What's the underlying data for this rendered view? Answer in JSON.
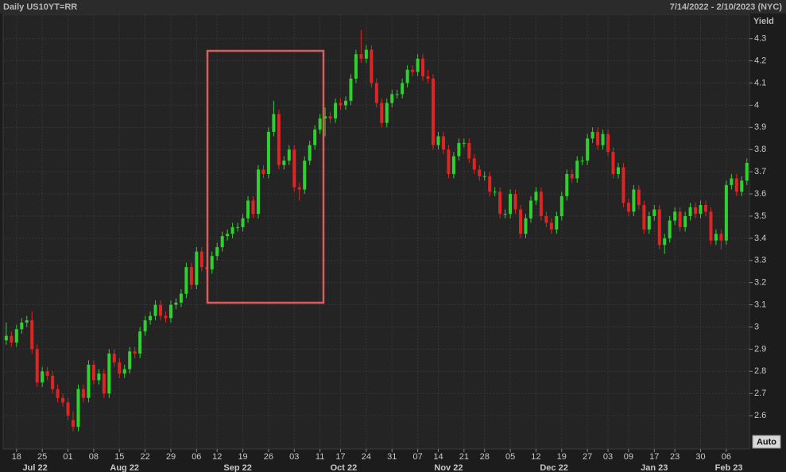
{
  "header": {
    "title": "Daily US10YT=RR",
    "range": "7/14/2022 - 2/10/2023 (NYC)"
  },
  "chart_data": {
    "type": "candlestick",
    "y_axis_label": "Yield",
    "button": "Auto",
    "up_color": "#2fd12f",
    "down_color": "#e02424",
    "grid": true,
    "xlim": [
      -0.6,
      144.5
    ],
    "ylim": [
      2.45,
      4.41
    ],
    "yticks": [
      2.6,
      2.7,
      2.8,
      2.9,
      3,
      3.1,
      3.2,
      3.3,
      3.4,
      3.5,
      3.6,
      3.7,
      3.8,
      3.9,
      4,
      4.1,
      4.2,
      4.3
    ],
    "xticks": [
      {
        "value": 2,
        "label": "18"
      },
      {
        "value": 7,
        "label": "25"
      },
      {
        "value": 12,
        "label": "01"
      },
      {
        "value": 17,
        "label": "08"
      },
      {
        "value": 22,
        "label": "15"
      },
      {
        "value": 27,
        "label": "22"
      },
      {
        "value": 32,
        "label": "29"
      },
      {
        "value": 37,
        "label": "06"
      },
      {
        "value": 41,
        "label": "12"
      },
      {
        "value": 46,
        "label": "19"
      },
      {
        "value": 51,
        "label": "26"
      },
      {
        "value": 56,
        "label": "03"
      },
      {
        "value": 61,
        "label": "11"
      },
      {
        "value": 65,
        "label": "17"
      },
      {
        "value": 70,
        "label": "24"
      },
      {
        "value": 75,
        "label": "31"
      },
      {
        "value": 80,
        "label": "07"
      },
      {
        "value": 84,
        "label": "14"
      },
      {
        "value": 89,
        "label": "21"
      },
      {
        "value": 93,
        "label": "28"
      },
      {
        "value": 98,
        "label": "05"
      },
      {
        "value": 103,
        "label": "12"
      },
      {
        "value": 108,
        "label": "19"
      },
      {
        "value": 113,
        "label": "27"
      },
      {
        "value": 117,
        "label": "03"
      },
      {
        "value": 121,
        "label": "09"
      },
      {
        "value": 126,
        "label": "17"
      },
      {
        "value": 130,
        "label": "23"
      },
      {
        "value": 135,
        "label": "30"
      },
      {
        "value": 140,
        "label": "06"
      }
    ],
    "month_ticks": [
      {
        "value": 5.6,
        "label": "Jul 22"
      },
      {
        "value": 23,
        "label": "Aug 22"
      },
      {
        "value": 45,
        "label": "Sep 22"
      },
      {
        "value": 65.6,
        "label": "Oct 22"
      },
      {
        "value": 86,
        "label": "Nov 22"
      },
      {
        "value": 106.5,
        "label": "Dec 22"
      },
      {
        "value": 126,
        "label": "Jan 23"
      },
      {
        "value": 140.5,
        "label": "Feb 23"
      }
    ],
    "candles": [
      [
        2.94,
        3.02,
        2.92,
        2.96
      ],
      [
        2.96,
        2.98,
        2.91,
        2.93
      ],
      [
        2.93,
        3.01,
        2.91,
        2.99
      ],
      [
        2.99,
        3.04,
        2.97,
        3.02
      ],
      [
        3.02,
        3.05,
        3.0,
        3.03
      ],
      [
        3.03,
        3.07,
        2.88,
        2.9
      ],
      [
        2.9,
        2.92,
        2.73,
        2.75
      ],
      [
        2.75,
        2.82,
        2.73,
        2.8
      ],
      [
        2.8,
        2.82,
        2.76,
        2.78
      ],
      [
        2.78,
        2.8,
        2.7,
        2.72
      ],
      [
        2.72,
        2.74,
        2.66,
        2.68
      ],
      [
        2.68,
        2.7,
        2.64,
        2.66
      ],
      [
        2.66,
        2.68,
        2.58,
        2.6
      ],
      [
        2.58,
        2.62,
        2.53,
        2.55
      ],
      [
        2.55,
        2.74,
        2.53,
        2.72
      ],
      [
        2.72,
        2.74,
        2.66,
        2.68
      ],
      [
        2.68,
        2.85,
        2.66,
        2.83
      ],
      [
        2.83,
        2.85,
        2.74,
        2.76
      ],
      [
        2.76,
        2.81,
        2.74,
        2.79
      ],
      [
        2.79,
        2.81,
        2.68,
        2.7
      ],
      [
        2.7,
        2.9,
        2.68,
        2.88
      ],
      [
        2.88,
        2.9,
        2.82,
        2.84
      ],
      [
        2.84,
        2.86,
        2.77,
        2.79
      ],
      [
        2.79,
        2.83,
        2.77,
        2.81
      ],
      [
        2.81,
        2.91,
        2.79,
        2.89
      ],
      [
        2.89,
        2.91,
        2.86,
        2.88
      ],
      [
        2.88,
        3.0,
        2.86,
        2.98
      ],
      [
        2.98,
        3.05,
        2.96,
        3.03
      ],
      [
        3.03,
        3.07,
        3.01,
        3.05
      ],
      [
        3.05,
        3.12,
        3.03,
        3.1
      ],
      [
        3.1,
        3.12,
        3.03,
        3.05
      ],
      [
        3.05,
        3.07,
        3.02,
        3.04
      ],
      [
        3.04,
        3.12,
        3.02,
        3.1
      ],
      [
        3.1,
        3.13,
        3.08,
        3.11
      ],
      [
        3.11,
        3.17,
        3.09,
        3.15
      ],
      [
        3.15,
        3.29,
        3.13,
        3.27
      ],
      [
        3.27,
        3.29,
        3.17,
        3.19
      ],
      [
        3.19,
        3.36,
        3.17,
        3.34
      ],
      [
        3.34,
        3.36,
        3.25,
        3.27
      ],
      [
        3.27,
        3.29,
        3.24,
        3.26
      ],
      [
        3.26,
        3.34,
        3.24,
        3.32
      ],
      [
        3.32,
        3.38,
        3.3,
        3.36
      ],
      [
        3.36,
        3.43,
        3.34,
        3.41
      ],
      [
        3.41,
        3.44,
        3.39,
        3.42
      ],
      [
        3.42,
        3.47,
        3.4,
        3.45
      ],
      [
        3.45,
        3.47,
        3.43,
        3.45
      ],
      [
        3.45,
        3.51,
        3.43,
        3.49
      ],
      [
        3.49,
        3.59,
        3.47,
        3.57
      ],
      [
        3.57,
        3.59,
        3.49,
        3.51
      ],
      [
        3.51,
        3.73,
        3.49,
        3.71
      ],
      [
        3.71,
        3.73,
        3.67,
        3.69
      ],
      [
        3.69,
        3.9,
        3.67,
        3.88
      ],
      [
        3.88,
        4.02,
        3.86,
        3.96
      ],
      [
        3.96,
        3.98,
        3.71,
        3.73
      ],
      [
        3.73,
        3.77,
        3.71,
        3.75
      ],
      [
        3.75,
        3.82,
        3.73,
        3.8
      ],
      [
        3.8,
        3.82,
        3.61,
        3.63
      ],
      [
        3.63,
        3.65,
        3.57,
        3.62
      ],
      [
        3.62,
        3.77,
        3.6,
        3.75
      ],
      [
        3.75,
        3.84,
        3.73,
        3.82
      ],
      [
        3.82,
        3.91,
        3.8,
        3.89
      ],
      [
        3.89,
        3.96,
        3.87,
        3.94
      ],
      [
        3.94,
        3.99,
        3.86,
        3.95
      ],
      [
        3.95,
        3.97,
        3.92,
        3.94
      ],
      [
        3.94,
        4.03,
        3.92,
        4.01
      ],
      [
        4.01,
        4.03,
        3.98,
        4.0
      ],
      [
        4.0,
        4.04,
        3.98,
        4.02
      ],
      [
        4.02,
        4.14,
        4.0,
        4.12
      ],
      [
        4.12,
        4.25,
        4.1,
        4.23
      ],
      [
        4.23,
        4.34,
        4.19,
        4.21
      ],
      [
        4.21,
        4.27,
        4.19,
        4.25
      ],
      [
        4.25,
        4.27,
        4.08,
        4.1
      ],
      [
        4.1,
        4.12,
        3.99,
        4.01
      ],
      [
        4.01,
        4.03,
        3.9,
        3.92
      ],
      [
        3.92,
        4.03,
        3.9,
        4.01
      ],
      [
        4.01,
        4.07,
        3.99,
        4.05
      ],
      [
        4.05,
        4.07,
        4.03,
        4.05
      ],
      [
        4.05,
        4.12,
        4.03,
        4.1
      ],
      [
        4.1,
        4.18,
        4.08,
        4.16
      ],
      [
        4.16,
        4.18,
        4.13,
        4.15
      ],
      [
        4.15,
        4.23,
        4.13,
        4.21
      ],
      [
        4.21,
        4.23,
        4.11,
        4.13
      ],
      [
        4.13,
        4.16,
        4.1,
        4.12
      ],
      [
        4.12,
        4.14,
        3.8,
        3.82
      ],
      [
        3.82,
        3.88,
        3.8,
        3.86
      ],
      [
        3.86,
        3.88,
        3.78,
        3.8
      ],
      [
        3.8,
        3.82,
        3.67,
        3.69
      ],
      [
        3.69,
        3.79,
        3.67,
        3.77
      ],
      [
        3.77,
        3.85,
        3.75,
        3.83
      ],
      [
        3.83,
        3.85,
        3.81,
        3.83
      ],
      [
        3.83,
        3.85,
        3.74,
        3.76
      ],
      [
        3.76,
        3.78,
        3.69,
        3.71
      ],
      [
        3.71,
        3.73,
        3.66,
        3.68
      ],
      [
        3.68,
        3.7,
        3.66,
        3.68
      ],
      [
        3.68,
        3.7,
        3.59,
        3.61
      ],
      [
        3.61,
        3.63,
        3.59,
        3.61
      ],
      [
        3.61,
        3.63,
        3.49,
        3.51
      ],
      [
        3.51,
        3.53,
        3.49,
        3.51
      ],
      [
        3.51,
        3.62,
        3.49,
        3.6
      ],
      [
        3.6,
        3.62,
        3.51,
        3.53
      ],
      [
        3.53,
        3.55,
        3.4,
        3.42
      ],
      [
        3.42,
        3.51,
        3.4,
        3.49
      ],
      [
        3.49,
        3.59,
        3.47,
        3.57
      ],
      [
        3.57,
        3.63,
        3.55,
        3.61
      ],
      [
        3.61,
        3.63,
        3.48,
        3.5
      ],
      [
        3.5,
        3.52,
        3.45,
        3.47
      ],
      [
        3.47,
        3.49,
        3.42,
        3.44
      ],
      [
        3.44,
        3.52,
        3.42,
        3.5
      ],
      [
        3.5,
        3.61,
        3.48,
        3.59
      ],
      [
        3.59,
        3.71,
        3.57,
        3.69
      ],
      [
        3.69,
        3.71,
        3.65,
        3.67
      ],
      [
        3.67,
        3.77,
        3.65,
        3.75
      ],
      [
        3.75,
        3.77,
        3.73,
        3.75
      ],
      [
        3.75,
        3.87,
        3.73,
        3.85
      ],
      [
        3.85,
        3.9,
        3.83,
        3.88
      ],
      [
        3.88,
        3.9,
        3.8,
        3.82
      ],
      [
        3.82,
        3.89,
        3.8,
        3.87
      ],
      [
        3.87,
        3.89,
        3.77,
        3.79
      ],
      [
        3.79,
        3.81,
        3.67,
        3.69
      ],
      [
        3.69,
        3.74,
        3.67,
        3.72
      ],
      [
        3.72,
        3.74,
        3.54,
        3.56
      ],
      [
        3.56,
        3.58,
        3.5,
        3.52
      ],
      [
        3.52,
        3.64,
        3.5,
        3.62
      ],
      [
        3.62,
        3.64,
        3.53,
        3.55
      ],
      [
        3.55,
        3.57,
        3.42,
        3.44
      ],
      [
        3.44,
        3.52,
        3.42,
        3.5
      ],
      [
        3.5,
        3.55,
        3.48,
        3.53
      ],
      [
        3.53,
        3.55,
        3.35,
        3.37
      ],
      [
        3.37,
        3.42,
        3.33,
        3.4
      ],
      [
        3.4,
        3.5,
        3.38,
        3.48
      ],
      [
        3.48,
        3.54,
        3.46,
        3.52
      ],
      [
        3.52,
        3.54,
        3.43,
        3.45
      ],
      [
        3.45,
        3.52,
        3.43,
        3.5
      ],
      [
        3.5,
        3.56,
        3.48,
        3.54
      ],
      [
        3.54,
        3.56,
        3.49,
        3.51
      ],
      [
        3.51,
        3.57,
        3.49,
        3.55
      ],
      [
        3.55,
        3.57,
        3.5,
        3.52
      ],
      [
        3.52,
        3.54,
        3.37,
        3.39
      ],
      [
        3.39,
        3.44,
        3.37,
        3.42
      ],
      [
        3.42,
        3.44,
        3.35,
        3.39
      ],
      [
        3.39,
        3.66,
        3.37,
        3.64
      ],
      [
        3.64,
        3.69,
        3.62,
        3.67
      ],
      [
        3.67,
        3.69,
        3.59,
        3.61
      ],
      [
        3.61,
        3.68,
        3.59,
        3.66
      ],
      [
        3.66,
        3.76,
        3.64,
        3.74
      ]
    ]
  }
}
